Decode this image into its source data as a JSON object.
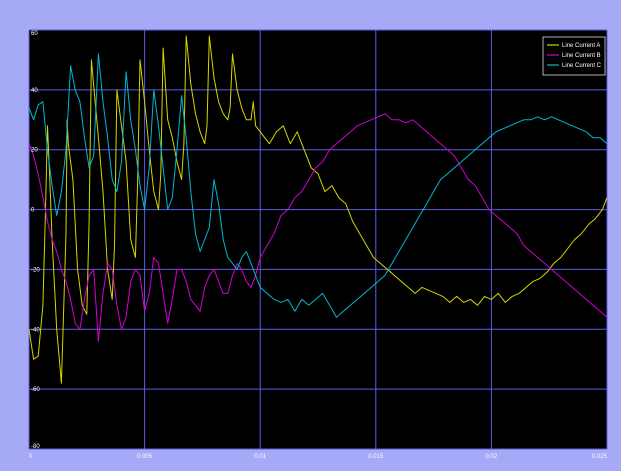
{
  "chart_data": {
    "type": "line",
    "background": "#000000",
    "figure_background": "#a6a9f6",
    "grid_color": "#5a5ee0",
    "grid": true,
    "legend_placement": "top-right",
    "xlim": [
      0,
      0.025
    ],
    "ylim": [
      -80,
      60
    ],
    "x_ticks": [
      0,
      0.005,
      0.01,
      0.015,
      0.02,
      0.025
    ],
    "x_tick_labels": [
      "0",
      "0.005",
      "0.01",
      "0.015",
      "0.02",
      "0.025"
    ],
    "y_ticks": [
      -80,
      -60,
      -40,
      -20,
      0,
      20,
      40,
      60
    ],
    "y_tick_labels": [
      "-80",
      "-60",
      "-40",
      "-20",
      "0",
      "20",
      "40",
      "60"
    ],
    "series": [
      {
        "name": "Line Current A",
        "color": "#d6d600",
        "x": [
          0,
          0.0002,
          0.0004,
          0.0006,
          0.0007,
          0.0008,
          0.0009,
          0.001,
          0.0012,
          0.0014,
          0.0016,
          0.00165,
          0.0017,
          0.0019,
          0.0021,
          0.0023,
          0.0025,
          0.0026,
          0.0027,
          0.003,
          0.0032,
          0.0034,
          0.0036,
          0.0037,
          0.0038,
          0.004,
          0.0042,
          0.0044,
          0.0046,
          0.0047,
          0.0048,
          0.005,
          0.0052,
          0.0054,
          0.0056,
          0.0057,
          0.0058,
          0.006,
          0.0062,
          0.0064,
          0.0066,
          0.0067,
          0.0068,
          0.007,
          0.0072,
          0.0074,
          0.0076,
          0.0077,
          0.0078,
          0.008,
          0.0082,
          0.0084,
          0.0086,
          0.0087,
          0.0088,
          0.009,
          0.0092,
          0.0094,
          0.0096,
          0.0097,
          0.0098,
          0.0101,
          0.0104,
          0.0107,
          0.011,
          0.0113,
          0.0116,
          0.0119,
          0.0122,
          0.0125,
          0.0128,
          0.0131,
          0.0134,
          0.0137,
          0.014,
          0.0143,
          0.0146,
          0.0149,
          0.0152,
          0.0155,
          0.0158,
          0.0161,
          0.0164,
          0.0167,
          0.017,
          0.0173,
          0.0176,
          0.0179,
          0.0182,
          0.0185,
          0.0188,
          0.0191,
          0.0194,
          0.0197,
          0.02,
          0.0203,
          0.0206,
          0.0209,
          0.0212,
          0.0215,
          0.0218,
          0.0221,
          0.0224,
          0.0227,
          0.023,
          0.0233,
          0.0236,
          0.0239,
          0.0242,
          0.0245,
          0.0248,
          0.025
        ],
        "values": [
          -40,
          -50,
          -49,
          -32,
          -4,
          28,
          10,
          -10,
          -40,
          -58,
          -8,
          30,
          22,
          10,
          -20,
          -32,
          -35,
          -4,
          50,
          24,
          6,
          -20,
          -30,
          -12,
          40,
          28,
          16,
          -10,
          -16,
          10,
          50,
          36,
          20,
          6,
          0,
          12,
          54,
          30,
          24,
          16,
          10,
          22,
          58,
          42,
          32,
          26,
          22,
          28,
          58,
          44,
          36,
          32,
          30,
          34,
          52,
          40,
          34,
          30,
          30,
          36,
          28,
          25,
          22,
          26,
          28,
          22,
          26,
          20,
          14,
          12,
          6,
          8,
          4,
          2,
          -4,
          -8,
          -12,
          -16,
          -18,
          -20,
          -22,
          -24,
          -26,
          -28,
          -26,
          -27,
          -28,
          -29,
          -31,
          -29,
          -31,
          -30,
          -32,
          -29,
          -30,
          -28,
          -31,
          -29,
          -28,
          -26,
          -24,
          -23,
          -21,
          -18,
          -16,
          -13,
          -10,
          -8,
          -5,
          -3,
          0,
          4
        ]
      },
      {
        "name": "Line Current B",
        "color": "#d400d4",
        "x": [
          0,
          0.0002,
          0.0004,
          0.0006,
          0.0008,
          0.001,
          0.0012,
          0.0014,
          0.0016,
          0.0018,
          0.002,
          0.0022,
          0.0024,
          0.0026,
          0.0028,
          0.003,
          0.0032,
          0.0034,
          0.0036,
          0.0038,
          0.004,
          0.0042,
          0.0044,
          0.0046,
          0.0048,
          0.005,
          0.0052,
          0.0054,
          0.0056,
          0.0058,
          0.006,
          0.0062,
          0.0064,
          0.0066,
          0.0068,
          0.007,
          0.0072,
          0.0074,
          0.0076,
          0.0078,
          0.008,
          0.0082,
          0.0084,
          0.0086,
          0.0088,
          0.009,
          0.0092,
          0.0094,
          0.0096,
          0.0098,
          0.01,
          0.0103,
          0.0106,
          0.0109,
          0.0112,
          0.0115,
          0.0118,
          0.0121,
          0.0124,
          0.0127,
          0.013,
          0.0133,
          0.0136,
          0.0139,
          0.0142,
          0.0145,
          0.0148,
          0.0151,
          0.0154,
          0.0157,
          0.016,
          0.0163,
          0.0166,
          0.0169,
          0.0172,
          0.0175,
          0.0178,
          0.0181,
          0.0184,
          0.0187,
          0.019,
          0.0193,
          0.0196,
          0.0199,
          0.0202,
          0.0205,
          0.0208,
          0.0211,
          0.0214,
          0.0217,
          0.022,
          0.0223,
          0.0226,
          0.0229,
          0.0232,
          0.0235,
          0.0238,
          0.0241,
          0.0244,
          0.0247,
          0.025
        ],
        "values": [
          22,
          18,
          12,
          4,
          -4,
          -10,
          -14,
          -20,
          -24,
          -30,
          -38,
          -40,
          -30,
          -22,
          -20,
          -44,
          -28,
          -18,
          -20,
          -32,
          -40,
          -36,
          -24,
          -20,
          -22,
          -34,
          -28,
          -16,
          -18,
          -28,
          -38,
          -30,
          -20,
          -20,
          -24,
          -30,
          -32,
          -34,
          -26,
          -22,
          -20,
          -24,
          -28,
          -28,
          -22,
          -18,
          -20,
          -24,
          -26,
          -22,
          -16,
          -12,
          -8,
          -2,
          0,
          4,
          6,
          10,
          14,
          16,
          20,
          22,
          24,
          26,
          28,
          29,
          30,
          31,
          32,
          30,
          30,
          29,
          30,
          28,
          26,
          24,
          22,
          20,
          18,
          14,
          10,
          8,
          4,
          0,
          -2,
          -4,
          -6,
          -8,
          -12,
          -14,
          -16,
          -18,
          -20,
          -22,
          -24,
          -26,
          -28,
          -30,
          -32,
          -34,
          -36
        ]
      },
      {
        "name": "Line Current C",
        "color": "#00b8d4",
        "x": [
          0,
          0.0002,
          0.0004,
          0.0006,
          0.0008,
          0.001,
          0.0012,
          0.0014,
          0.0016,
          0.0018,
          0.002,
          0.0022,
          0.0024,
          0.0026,
          0.0028,
          0.003,
          0.0032,
          0.0034,
          0.0036,
          0.0038,
          0.004,
          0.0042,
          0.0044,
          0.0046,
          0.0048,
          0.005,
          0.0052,
          0.0054,
          0.0056,
          0.0058,
          0.006,
          0.0062,
          0.0064,
          0.0066,
          0.0068,
          0.007,
          0.0072,
          0.0074,
          0.0076,
          0.0078,
          0.008,
          0.0082,
          0.0084,
          0.0086,
          0.0088,
          0.009,
          0.0092,
          0.0094,
          0.0096,
          0.0098,
          0.01,
          0.0103,
          0.0106,
          0.0109,
          0.0112,
          0.0115,
          0.0118,
          0.0121,
          0.0124,
          0.0127,
          0.013,
          0.0133,
          0.0136,
          0.0139,
          0.0142,
          0.0145,
          0.0148,
          0.0151,
          0.0154,
          0.0157,
          0.016,
          0.0163,
          0.0166,
          0.0169,
          0.0172,
          0.0175,
          0.0178,
          0.0181,
          0.0184,
          0.0187,
          0.019,
          0.0193,
          0.0196,
          0.0199,
          0.0202,
          0.0205,
          0.0208,
          0.0211,
          0.0214,
          0.0217,
          0.022,
          0.0223,
          0.0226,
          0.0229,
          0.0232,
          0.0235,
          0.0238,
          0.0241,
          0.0244,
          0.0247,
          0.025
        ],
        "values": [
          34,
          30,
          35,
          36,
          20,
          8,
          -2,
          6,
          20,
          48,
          40,
          36,
          24,
          14,
          18,
          52,
          36,
          24,
          10,
          6,
          16,
          46,
          30,
          20,
          8,
          0,
          14,
          40,
          28,
          14,
          0,
          4,
          20,
          38,
          24,
          6,
          -8,
          -14,
          -10,
          -6,
          10,
          2,
          -10,
          -16,
          -18,
          -20,
          -16,
          -14,
          -18,
          -22,
          -26,
          -28,
          -30,
          -31,
          -30,
          -34,
          -30,
          -32,
          -30,
          -28,
          -32,
          -36,
          -34,
          -32,
          -30,
          -28,
          -26,
          -24,
          -22,
          -18,
          -14,
          -10,
          -6,
          -2,
          2,
          6,
          10,
          12,
          14,
          16,
          18,
          20,
          22,
          24,
          26,
          27,
          28,
          29,
          30,
          30,
          31,
          30,
          31,
          30,
          29,
          28,
          27,
          26,
          24,
          24,
          22
        ]
      }
    ]
  }
}
